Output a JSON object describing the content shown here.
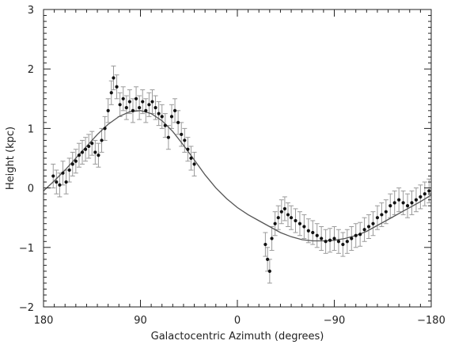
{
  "chart_data": {
    "type": "scatter",
    "title": "",
    "xlabel": "Galactocentric Azimuth (degrees)",
    "ylabel": "Height (kpc)",
    "xlim": [
      180,
      -180
    ],
    "ylim": [
      -2,
      3
    ],
    "x_ticks": [
      180,
      90,
      0,
      -90,
      -180
    ],
    "x_tick_labels": [
      "180",
      "90",
      "0",
      "−90",
      "−180"
    ],
    "y_ticks": [
      -2,
      -1,
      0,
      1,
      2,
      3
    ],
    "y_tick_labels": [
      "−2",
      "−1",
      "0",
      "1",
      "2",
      "3"
    ],
    "grid": false,
    "colors": {
      "points": "#111111",
      "error_bars": "#9a9a9a",
      "fit_curve": "#555555",
      "axes": "#222222"
    },
    "series": [
      {
        "kind": "points_with_error_bars",
        "error": 0.2,
        "points": [
          [
            171,
            0.2
          ],
          [
            168,
            0.1
          ],
          [
            165,
            0.05
          ],
          [
            162,
            0.25
          ],
          [
            159,
            0.1
          ],
          [
            156,
            0.3
          ],
          [
            153,
            0.4
          ],
          [
            150,
            0.45
          ],
          [
            147,
            0.55
          ],
          [
            144,
            0.6
          ],
          [
            141,
            0.65
          ],
          [
            138,
            0.7
          ],
          [
            135,
            0.75
          ],
          [
            132,
            0.6
          ],
          [
            129,
            0.55
          ],
          [
            126,
            0.8
          ],
          [
            123,
            1.0
          ],
          [
            120,
            1.3
          ],
          [
            117,
            1.6
          ],
          [
            115,
            1.85
          ],
          [
            112,
            1.7
          ],
          [
            109,
            1.4
          ],
          [
            106,
            1.5
          ],
          [
            103,
            1.35
          ],
          [
            100,
            1.45
          ],
          [
            97,
            1.3
          ],
          [
            94,
            1.5
          ],
          [
            91,
            1.35
          ],
          [
            88,
            1.45
          ],
          [
            85,
            1.3
          ],
          [
            82,
            1.4
          ],
          [
            79,
            1.45
          ],
          [
            76,
            1.35
          ],
          [
            73,
            1.25
          ],
          [
            70,
            1.2
          ],
          [
            67,
            1.05
          ],
          [
            64,
            0.85
          ],
          [
            61,
            1.2
          ],
          [
            58,
            1.3
          ],
          [
            55,
            1.1
          ],
          [
            52,
            0.9
          ],
          [
            49,
            0.8
          ],
          [
            46,
            0.65
          ],
          [
            43,
            0.5
          ],
          [
            40,
            0.4
          ],
          [
            -26,
            -0.95
          ],
          [
            -28,
            -1.2
          ],
          [
            -30,
            -1.4
          ],
          [
            -32,
            -0.85
          ],
          [
            -35,
            -0.6
          ],
          [
            -38,
            -0.5
          ],
          [
            -41,
            -0.4
          ],
          [
            -44,
            -0.35
          ],
          [
            -47,
            -0.45
          ],
          [
            -50,
            -0.5
          ],
          [
            -54,
            -0.55
          ],
          [
            -58,
            -0.6
          ],
          [
            -62,
            -0.65
          ],
          [
            -66,
            -0.72
          ],
          [
            -70,
            -0.75
          ],
          [
            -74,
            -0.8
          ],
          [
            -78,
            -0.85
          ],
          [
            -82,
            -0.9
          ],
          [
            -86,
            -0.88
          ],
          [
            -90,
            -0.85
          ],
          [
            -94,
            -0.9
          ],
          [
            -98,
            -0.95
          ],
          [
            -102,
            -0.9
          ],
          [
            -106,
            -0.85
          ],
          [
            -110,
            -0.8
          ],
          [
            -114,
            -0.78
          ],
          [
            -118,
            -0.7
          ],
          [
            -122,
            -0.65
          ],
          [
            -126,
            -0.6
          ],
          [
            -130,
            -0.5
          ],
          [
            -134,
            -0.45
          ],
          [
            -138,
            -0.4
          ],
          [
            -142,
            -0.3
          ],
          [
            -146,
            -0.25
          ],
          [
            -150,
            -0.2
          ],
          [
            -154,
            -0.25
          ],
          [
            -158,
            -0.3
          ],
          [
            -162,
            -0.25
          ],
          [
            -166,
            -0.2
          ],
          [
            -170,
            -0.15
          ],
          [
            -174,
            -0.1
          ],
          [
            -178,
            -0.05
          ]
        ]
      },
      {
        "kind": "fit_curve",
        "points": [
          [
            180,
            -0.05
          ],
          [
            170,
            0.12
          ],
          [
            160,
            0.3
          ],
          [
            150,
            0.5
          ],
          [
            140,
            0.7
          ],
          [
            130,
            0.9
          ],
          [
            120,
            1.07
          ],
          [
            110,
            1.2
          ],
          [
            100,
            1.28
          ],
          [
            90,
            1.3
          ],
          [
            80,
            1.25
          ],
          [
            70,
            1.13
          ],
          [
            60,
            0.95
          ],
          [
            50,
            0.72
          ],
          [
            40,
            0.47
          ],
          [
            30,
            0.22
          ],
          [
            20,
            0.0
          ],
          [
            10,
            -0.18
          ],
          [
            0,
            -0.33
          ],
          [
            -10,
            -0.45
          ],
          [
            -20,
            -0.55
          ],
          [
            -30,
            -0.65
          ],
          [
            -40,
            -0.75
          ],
          [
            -50,
            -0.82
          ],
          [
            -60,
            -0.87
          ],
          [
            -70,
            -0.89
          ],
          [
            -80,
            -0.89
          ],
          [
            -90,
            -0.88
          ],
          [
            -100,
            -0.85
          ],
          [
            -110,
            -0.8
          ],
          [
            -120,
            -0.73
          ],
          [
            -130,
            -0.63
          ],
          [
            -140,
            -0.53
          ],
          [
            -150,
            -0.43
          ],
          [
            -160,
            -0.33
          ],
          [
            -170,
            -0.23
          ],
          [
            -180,
            -0.12
          ]
        ]
      }
    ]
  }
}
